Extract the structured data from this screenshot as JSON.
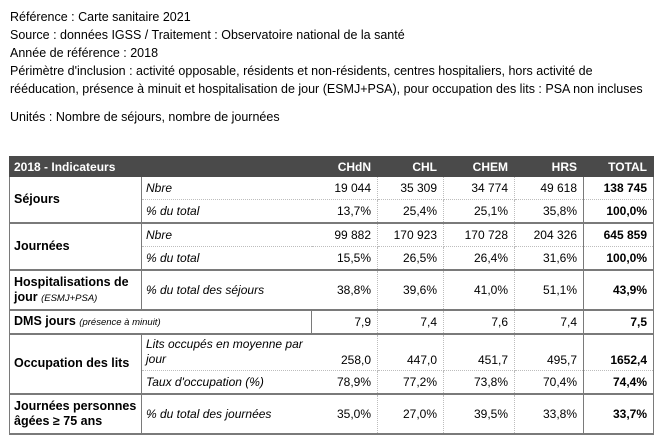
{
  "meta": {
    "reference": "Référence : Carte sanitaire 2021",
    "source": "Source : données IGSS / Traitement : Observatoire national de la santé",
    "year": "Année de référence : 2018",
    "scope_line1": "Périmètre d'inclusion : activité opposable, résidents et non-résidents, centres hospitaliers, hors activité de",
    "scope_line2": "rééducation, présence à minuit et hospitalisation de jour (ESMJ+PSA), pour occupation des lits : PSA non incluses",
    "units": "Unités : Nombre de séjours, nombre de journées"
  },
  "table": {
    "headers": [
      "2018 - Indicateurs",
      "CHdN",
      "CHL",
      "CHEM",
      "HRS",
      "TOTAL"
    ],
    "sejours": {
      "label": "Séjours",
      "nbre": {
        "label": "Nbre",
        "values": [
          "19 044",
          "35 309",
          "34 774",
          "49 618",
          "138 745"
        ]
      },
      "pct": {
        "label": "% du total",
        "values": [
          "13,7%",
          "25,4%",
          "25,1%",
          "35,8%",
          "100,0%"
        ]
      }
    },
    "journees": {
      "label": "Journées",
      "nbre": {
        "label": "Nbre",
        "values": [
          "99 882",
          "170 923",
          "170 728",
          "204 326",
          "645 859"
        ]
      },
      "pct": {
        "label": "% du total",
        "values": [
          "15,5%",
          "26,5%",
          "26,4%",
          "31,6%",
          "100,0%"
        ]
      }
    },
    "hospit": {
      "label": "Hospitalisations de jour",
      "label_small": "(ESMJ+PSA)",
      "row": {
        "label": "% du total des séjours",
        "values": [
          "38,8%",
          "39,6%",
          "41,0%",
          "51,1%",
          "43,9%"
        ]
      }
    },
    "dms": {
      "label": "DMS jours",
      "label_small": "(présence à minuit)",
      "values": [
        "7,9",
        "7,4",
        "7,6",
        "7,4",
        "7,5"
      ]
    },
    "occupation": {
      "label": "Occupation des lits",
      "lits": {
        "label": "Lits occupés en moyenne par jour",
        "values": [
          "258,0",
          "447,0",
          "451,7",
          "495,7",
          "1652,4"
        ]
      },
      "taux": {
        "label": "Taux d'occupation (%)",
        "values": [
          "78,9%",
          "77,2%",
          "73,8%",
          "70,4%",
          "74,4%"
        ]
      }
    },
    "agees": {
      "label": "Journées personnes âgées ≥ 75 ans",
      "row": {
        "label": "% du total des journées",
        "values": [
          "35,0%",
          "27,0%",
          "39,5%",
          "33,8%",
          "33,7%"
        ]
      }
    }
  }
}
